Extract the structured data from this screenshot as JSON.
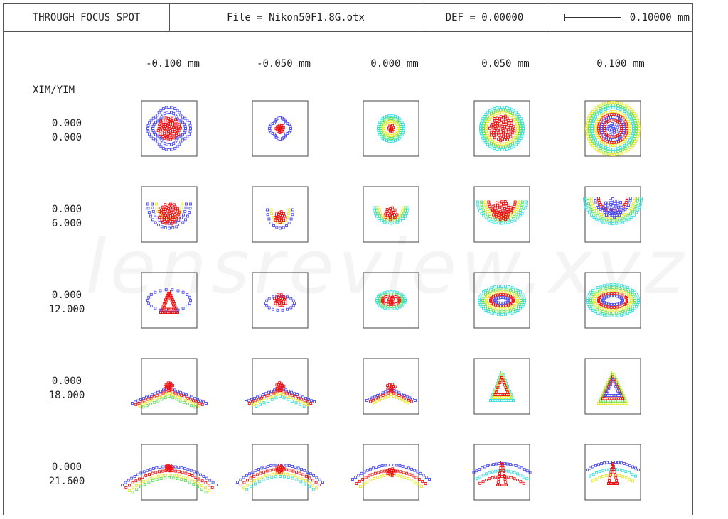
{
  "header": {
    "title": "THROUGH FOCUS SPOT",
    "file": "File = Nikon50F1.8G.otx",
    "def": "DEF = 0.00000",
    "scale": "0.10000 mm"
  },
  "axis_label": "XIM/YIM",
  "defocus_labels": [
    "-0.100 mm",
    "-0.050 mm",
    "0.000 mm",
    "0.050 mm",
    "0.100 mm"
  ],
  "field_labels": [
    [
      "0.000",
      "0.000"
    ],
    [
      "0.000",
      "6.000"
    ],
    [
      "0.000",
      "12.000"
    ],
    [
      "0.000",
      "18.000"
    ],
    [
      "0.000",
      "21.600"
    ]
  ],
  "watermark": "lensreview.xyz",
  "colors": {
    "blue": "#4a4af0",
    "red": "#ee1111",
    "green": "#5ce05c",
    "cyan": "#33dddd",
    "yellow": "#e8e830"
  }
}
